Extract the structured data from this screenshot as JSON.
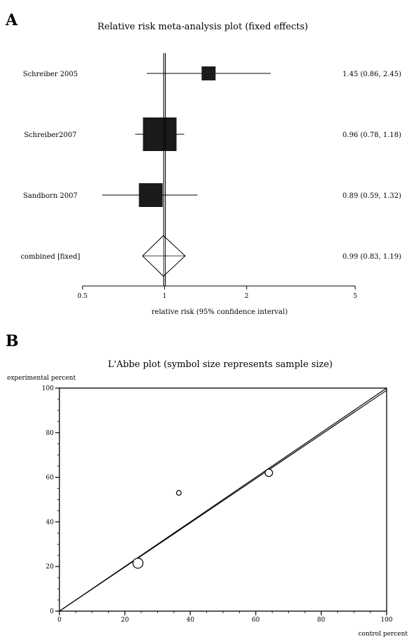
{
  "panels": {
    "a": {
      "letter": "A"
    },
    "b": {
      "letter": "B"
    }
  },
  "chart_data": [
    {
      "type": "forest",
      "title": "Relative risk meta-analysis plot (fixed effects)",
      "xlabel": "relative risk (95% confidence interval)",
      "xscale": "log",
      "xticks": [
        "0.5",
        "1",
        "2",
        "5"
      ],
      "xlim": [
        0.5,
        5
      ],
      "reference_line": 1,
      "studies": [
        {
          "name": "Schreiber 2005",
          "estimate": 1.45,
          "lower": 0.86,
          "upper": 2.45,
          "weight": 1,
          "ci_text": "1.45 (0.86, 2.45)"
        },
        {
          "name": "Schreiber2007",
          "estimate": 0.96,
          "lower": 0.78,
          "upper": 1.18,
          "weight": 9,
          "ci_text": "0.96 (0.78, 1.18)"
        },
        {
          "name": "Sandborn 2007",
          "estimate": 0.89,
          "lower": 0.59,
          "upper": 1.32,
          "weight": 4,
          "ci_text": "0.89 (0.59, 1.32)"
        }
      ],
      "combined": {
        "name": "combined [fixed]",
        "estimate": 0.99,
        "lower": 0.83,
        "upper": 1.19,
        "ci_text": "0.99 (0.83, 1.19)"
      }
    },
    {
      "type": "scatter",
      "title": "L'Abbe plot (symbol size represents sample size)",
      "xlabel": "control percent",
      "ylabel": "experimental percent",
      "xlim": [
        0,
        100
      ],
      "ylim": [
        0,
        100
      ],
      "xticks": [
        "0",
        "20",
        "40",
        "60",
        "80",
        "100"
      ],
      "yticks": [
        "0",
        "20",
        "40",
        "60",
        "80",
        "100"
      ],
      "reference_lines": [
        {
          "from": [
            0,
            0
          ],
          "to": [
            100,
            100
          ]
        },
        {
          "from": [
            0,
            0
          ],
          "to": [
            100,
            99
          ]
        }
      ],
      "points": [
        {
          "x": 24,
          "y": 21.5,
          "size": 3
        },
        {
          "x": 36.5,
          "y": 53,
          "size": 1
        },
        {
          "x": 64,
          "y": 62,
          "size": 2
        }
      ]
    }
  ]
}
